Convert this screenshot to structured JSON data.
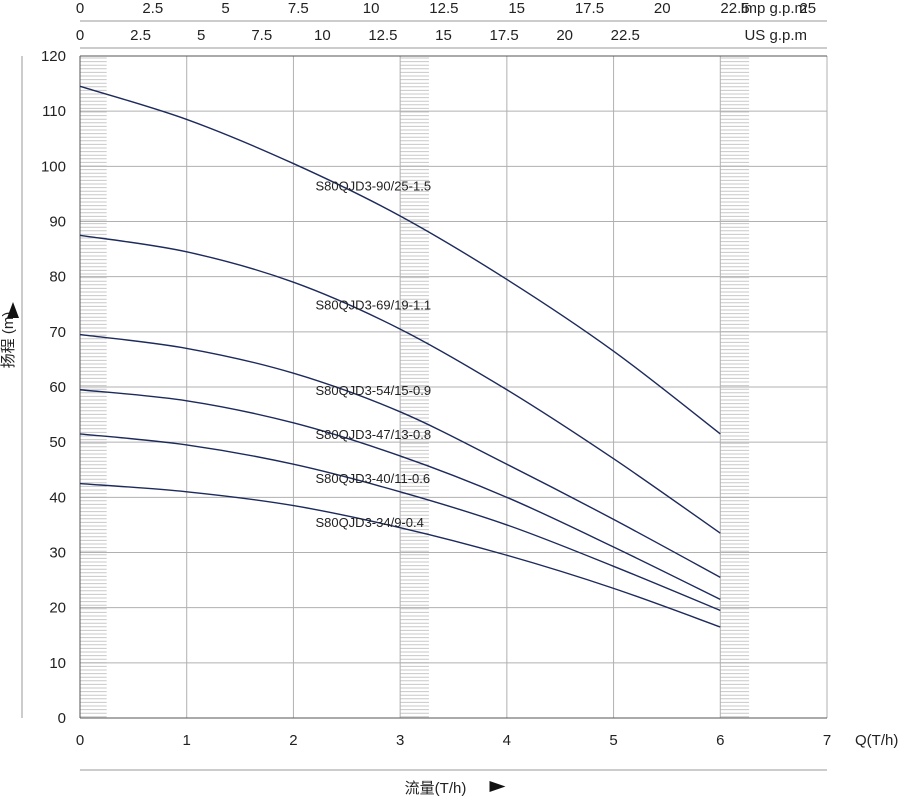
{
  "chart_data": {
    "type": "line",
    "xlabel": "流量(T/h)",
    "ylabel": "扬程 (m)",
    "x_end_label": "Q(T/h)",
    "xlim": [
      0,
      7
    ],
    "ylim": [
      0,
      120
    ],
    "x_ticks": [
      "0",
      "1",
      "2",
      "3",
      "4",
      "5",
      "6",
      "7"
    ],
    "y_ticks": [
      "0",
      "10",
      "20",
      "30",
      "40",
      "50",
      "60",
      "70",
      "80",
      "90",
      "100",
      "110",
      "120"
    ],
    "top_axes": [
      {
        "unit": "Imp g.p.m",
        "ticks": [
          "0",
          "2.5",
          "5",
          "7.5",
          "10",
          "12.5",
          "15",
          "17.5",
          "20",
          "22.5",
          "25"
        ],
        "tick_values": [
          0,
          2.5,
          5,
          7.5,
          10,
          12.5,
          15,
          17.5,
          20,
          22.5,
          25
        ],
        "flow_per_unit": 0.2728
      },
      {
        "unit": "US g.p.m",
        "ticks": [
          "0",
          "2.5",
          "5",
          "7.5",
          "10",
          "12.5",
          "15",
          "17.5",
          "20",
          "22.5"
        ],
        "tick_values": [
          0,
          2.5,
          5,
          7.5,
          10,
          12.5,
          15,
          17.5,
          20,
          22.5
        ],
        "flow_per_unit": 0.2271
      }
    ],
    "grid": true,
    "series": [
      {
        "name": "S80QJD3-90/25-1.5",
        "x": [
          0,
          1,
          2,
          3,
          4,
          5,
          6
        ],
        "y": [
          114.5,
          108.5,
          100.5,
          91,
          79.5,
          66.5,
          51.5
        ]
      },
      {
        "name": "S80QJD3-69/19-1.1",
        "x": [
          0,
          1,
          2,
          3,
          4,
          5,
          6
        ],
        "y": [
          87.5,
          84.5,
          79,
          70.5,
          59.5,
          47,
          33.5
        ]
      },
      {
        "name": "S80QJD3-54/15-0.9",
        "x": [
          0,
          1,
          2,
          3,
          4,
          5,
          6
        ],
        "y": [
          69.5,
          67,
          62.5,
          55.5,
          46,
          36,
          25.5
        ]
      },
      {
        "name": "S80QJD3-47/13-0.8",
        "x": [
          0,
          1,
          2,
          3,
          4,
          5,
          6
        ],
        "y": [
          59.5,
          57.5,
          53.5,
          47.5,
          40,
          31,
          21.5
        ]
      },
      {
        "name": "S80QJD3-40/11-0.6",
        "x": [
          0,
          1,
          2,
          3,
          4,
          5,
          6
        ],
        "y": [
          51.5,
          49.5,
          46,
          41,
          35,
          27.5,
          19.5
        ]
      },
      {
        "name": "S80QJD3-34/9-0.4",
        "x": [
          0,
          1,
          2,
          3,
          4,
          5,
          6
        ],
        "y": [
          42.5,
          41,
          38.5,
          34.5,
          29.5,
          23.5,
          16.5
        ]
      }
    ],
    "curve_labels": [
      {
        "text": "S80QJD3-90/25-1.5",
        "x": 2.45,
        "y": 96.5
      },
      {
        "text": "S80QJD3-69/19-1.1",
        "x": 2.45,
        "y": 75
      },
      {
        "text": "S80QJD3-54/15-0.9",
        "x": 2.45,
        "y": 59.5
      },
      {
        "text": "S80QJD3-47/13-0.8",
        "x": 2.45,
        "y": 51.5
      },
      {
        "text": "S80QJD3-40/11-0.6",
        "x": 2.45,
        "y": 43.5
      },
      {
        "text": "S80QJD3-34/9-0.4",
        "x": 2.45,
        "y": 35.5
      }
    ],
    "hatched_bands": [
      [
        0,
        0.25
      ],
      [
        3,
        3.27
      ],
      [
        6,
        6.27
      ]
    ],
    "colors": {
      "curve": "#1d2a5c",
      "grid": "#b0b0b0",
      "hatch": "#c8c8c8",
      "text": "#222222"
    }
  }
}
